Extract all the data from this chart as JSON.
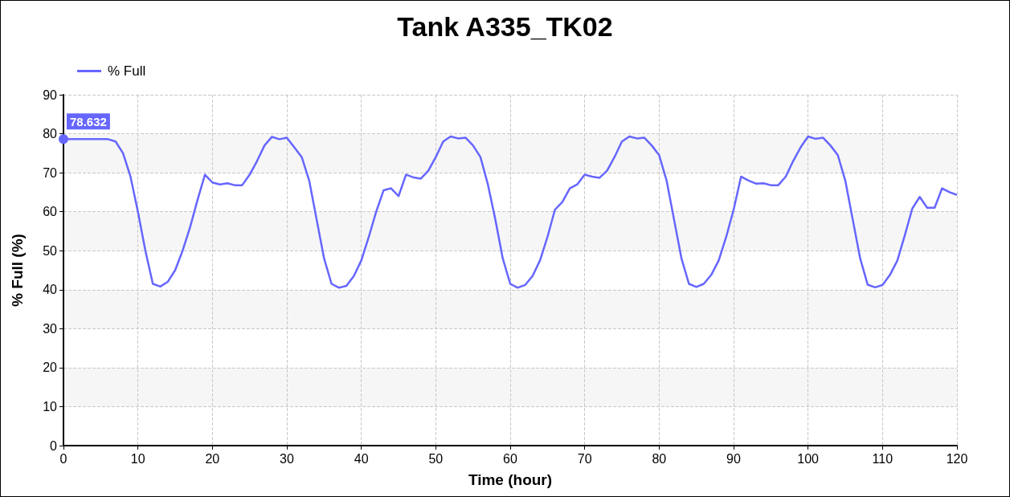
{
  "chart_data": {
    "type": "line",
    "title": "Tank A335_TK02",
    "xlabel": "Time (hour)",
    "ylabel": "% Full (%)",
    "x": [
      0,
      1,
      2,
      3,
      4,
      5,
      6,
      7,
      8,
      9,
      10,
      11,
      12,
      13,
      14,
      15,
      16,
      17,
      18,
      19,
      20,
      21,
      22,
      23,
      24,
      25,
      26,
      27,
      28,
      29,
      30,
      31,
      32,
      33,
      34,
      35,
      36,
      37,
      38,
      39,
      40,
      41,
      42,
      43,
      44,
      45,
      46,
      47,
      48,
      49,
      50,
      51,
      52,
      53,
      54,
      55,
      56,
      57,
      58,
      59,
      60,
      61,
      62,
      63,
      64,
      65,
      66,
      67,
      68,
      69,
      70,
      71,
      72,
      73,
      74,
      75,
      76,
      77,
      78,
      79,
      80,
      81,
      82,
      83,
      84,
      85,
      86,
      87,
      88,
      89,
      90,
      91,
      92,
      93,
      94,
      95,
      96,
      97,
      98,
      99,
      100,
      101,
      102,
      103,
      104,
      105,
      106,
      107,
      108,
      109,
      110,
      111,
      112,
      113,
      114,
      115,
      116,
      117,
      118,
      119,
      120
    ],
    "series": [
      {
        "name": "% Full",
        "color": "#6666ff",
        "values": [
          78.632,
          78.6,
          78.6,
          78.6,
          78.6,
          78.6,
          78.6,
          78,
          75,
          69,
          60,
          50,
          41.5,
          40.8,
          42,
          45,
          50,
          56,
          63,
          69.5,
          67.5,
          67,
          67.3,
          66.8,
          66.8,
          69.5,
          73,
          77,
          79.2,
          78.6,
          79,
          76.5,
          74,
          68,
          58,
          48,
          41.5,
          40.5,
          41,
          43.5,
          47.5,
          53.5,
          60,
          65.5,
          66,
          64,
          69.5,
          68.8,
          68.5,
          70.5,
          74,
          78,
          79.3,
          78.8,
          79,
          77,
          74,
          67,
          58,
          48,
          41.5,
          40.5,
          41.2,
          43.5,
          47.5,
          53.5,
          60.5,
          62.5,
          66,
          67,
          69.5,
          69,
          68.7,
          70.5,
          74,
          78,
          79.3,
          78.8,
          79,
          77,
          74.5,
          68,
          58,
          48,
          41.5,
          40.7,
          41.5,
          43.8,
          47.5,
          53.5,
          60.5,
          69,
          68,
          67.2,
          67.3,
          66.8,
          66.8,
          69,
          73,
          76.5,
          79.3,
          78.7,
          79,
          77,
          74.5,
          68,
          58,
          48,
          41.3,
          40.6,
          41.2,
          43.8,
          47.5,
          54,
          60.8,
          63.8,
          61,
          61,
          66,
          65,
          64.3
        ]
      }
    ],
    "annotations": [
      {
        "text": "78.632",
        "x": 0,
        "y": 78.632
      }
    ],
    "xlim": [
      0,
      120
    ],
    "xticks": [
      0,
      10,
      20,
      30,
      40,
      50,
      60,
      70,
      80,
      90,
      100,
      110,
      120
    ],
    "ylim": [
      0,
      90
    ],
    "yticks": [
      0,
      10,
      20,
      30,
      40,
      50,
      60,
      70,
      80,
      90
    ],
    "grid": true,
    "legend": "top left",
    "marker": "none",
    "line_style": "solid"
  }
}
